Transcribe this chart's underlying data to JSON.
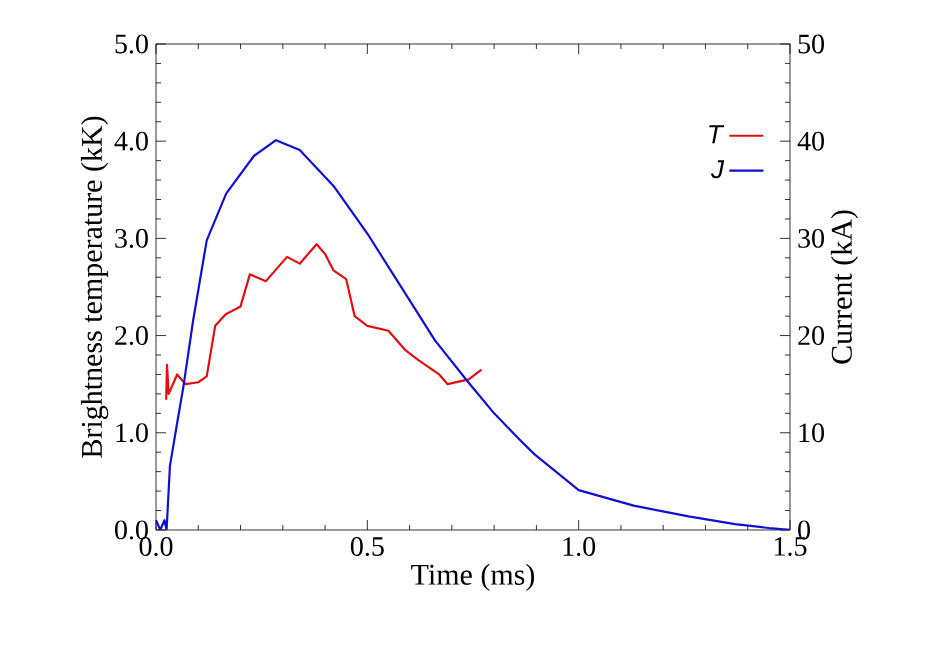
{
  "chart_data": {
    "type": "line",
    "xlabel": "Time (ms)",
    "ylabel": "Brightness temperature (kK)",
    "y2label": "Current (kA)",
    "xlim": [
      0,
      1.5
    ],
    "xticks": [
      {
        "value": 0,
        "label": "0.0"
      },
      0.5,
      {
        "value": 1,
        "label": "1.0"
      },
      1.5
    ],
    "ylim": [
      0,
      5
    ],
    "yticks": [
      {
        "value": 0,
        "label": "0.0"
      },
      {
        "value": 1,
        "label": "1.0"
      },
      {
        "value": 2,
        "label": "2.0"
      },
      {
        "value": 3,
        "label": "3.0"
      },
      {
        "value": 4,
        "label": "4.0"
      },
      {
        "value": 5,
        "label": "5.0"
      }
    ],
    "y2lim": [
      0,
      50
    ],
    "y2ticks": [
      0,
      10,
      20,
      30,
      40,
      50
    ],
    "legend": "top right",
    "marker": "none",
    "line_style": "solid",
    "grid": false,
    "series": [
      {
        "name": "*T*",
        "color": "#e01010",
        "x": [
          0.024,
          0.026,
          0.03,
          0.05,
          0.07,
          0.1,
          0.12,
          0.14,
          0.165,
          0.2,
          0.222,
          0.26,
          0.31,
          0.34,
          0.38,
          0.4,
          0.42,
          0.45,
          0.47,
          0.5,
          0.55,
          0.59,
          0.62,
          0.67,
          0.69,
          0.74,
          0.77
        ],
        "values": [
          1.34,
          1.7,
          1.4,
          1.6,
          1.5,
          1.52,
          1.58,
          2.1,
          2.22,
          2.3,
          2.63,
          2.56,
          2.81,
          2.74,
          2.94,
          2.84,
          2.67,
          2.58,
          2.2,
          2.1,
          2.05,
          1.85,
          1.75,
          1.6,
          1.5,
          1.55,
          1.65
        ]
      },
      {
        "name": "*J*",
        "color": "#1010d0",
        "axis": "y2",
        "x": [
          0,
          0.01,
          0.02,
          0.025,
          0.033,
          0.05,
          0.065,
          0.088,
          0.12,
          0.166,
          0.232,
          0.284,
          0.34,
          0.42,
          0.5,
          0.58,
          0.66,
          0.735,
          0.8,
          0.86,
          0.895,
          1.0,
          1.13,
          1.26,
          1.37,
          1.45,
          1.5
        ],
        "values": [
          1,
          0,
          1,
          0,
          6.6,
          11,
          14.8,
          21.6,
          29.8,
          34.6,
          38.5,
          40.1,
          39.1,
          35.4,
          30.5,
          25,
          19.5,
          15.4,
          12,
          9.3,
          7.8,
          4.1,
          2.5,
          1.4,
          0.6,
          0.2,
          0
        ]
      }
    ]
  }
}
